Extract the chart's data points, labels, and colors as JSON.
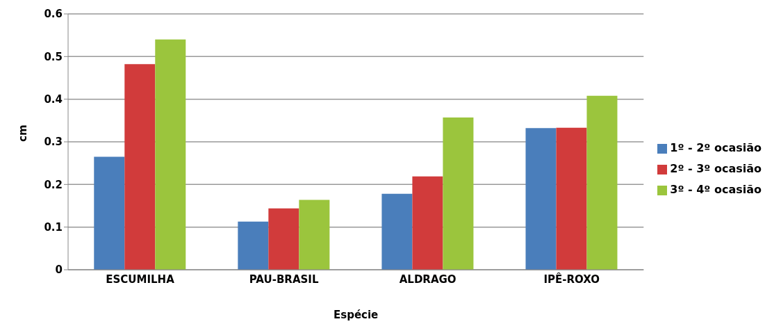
{
  "chart_data": {
    "type": "bar",
    "xlabel": "Espécie",
    "ylabel": "cm",
    "categories": [
      "ESCUMILHA",
      "PAU-BRASIL",
      "ALDRAGO",
      "IPÊ-ROXO"
    ],
    "series": [
      {
        "name": "1º - 2º ocasião",
        "color": "#4a7ebb",
        "values": [
          0.265,
          0.113,
          0.178,
          0.332
        ]
      },
      {
        "name": "2º - 3º ocasião",
        "color": "#d13b3b",
        "values": [
          0.482,
          0.144,
          0.219,
          0.333
        ]
      },
      {
        "name": "3º - 4º ocasião",
        "color": "#9bc53d",
        "values": [
          0.54,
          0.164,
          0.357,
          0.408
        ]
      }
    ],
    "ylim": [
      0,
      0.6
    ],
    "yticks": [
      0,
      0.1,
      0.2,
      0.3,
      0.4,
      0.5,
      0.6
    ],
    "grid": "y",
    "legend": "right"
  }
}
